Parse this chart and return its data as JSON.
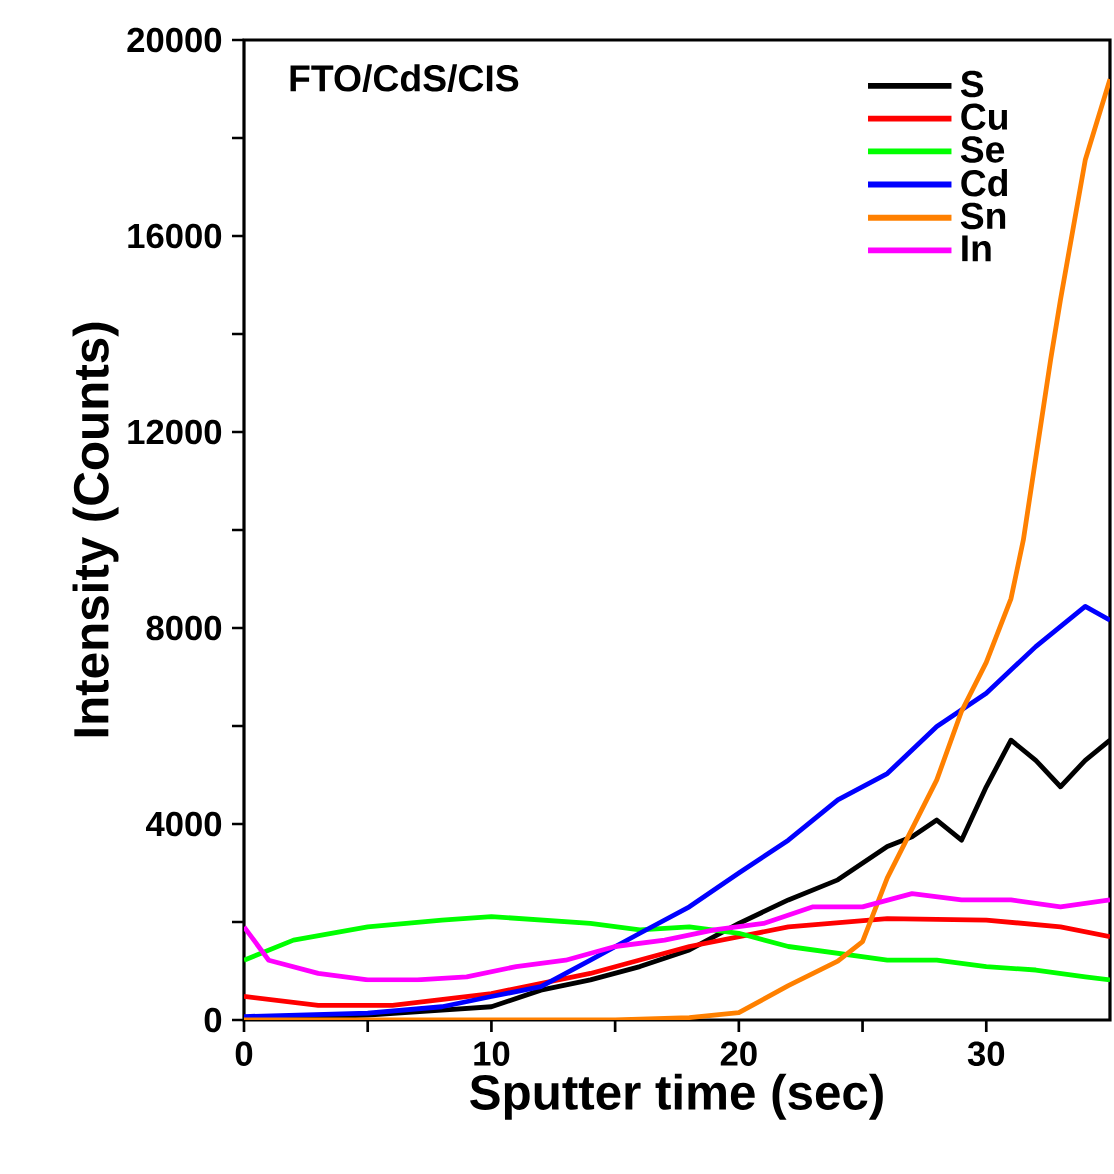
{
  "chart_data": {
    "type": "line",
    "xlabel": "Sputter time (sec)",
    "ylabel": "Intensity (Counts)",
    "annotations": [
      "FTO/CdS/CIS"
    ],
    "xlim": [
      0,
      35
    ],
    "ylim": [
      0,
      20000
    ],
    "xticks": [
      0,
      {
        "value": 5,
        "label": null
      },
      10,
      {
        "value": 15,
        "label": null
      },
      20,
      {
        "value": 25,
        "label": null
      },
      30
    ],
    "yticks": [
      0,
      {
        "value": 2000,
        "label": null
      },
      4000,
      {
        "value": 6000,
        "label": null
      },
      8000,
      {
        "value": 10000,
        "label": null
      },
      12000,
      {
        "value": 14000,
        "label": null
      },
      16000,
      {
        "value": 18000,
        "label": null
      },
      20000
    ],
    "grid": false,
    "legend": "top right",
    "marker": "none",
    "line_style": "solid",
    "series": [
      {
        "name": "S",
        "color": "#000000",
        "x": [
          0,
          5,
          8,
          10,
          12,
          14,
          16,
          18,
          20,
          22,
          24,
          26,
          27,
          28,
          29,
          30,
          31,
          32,
          33,
          34,
          35
        ],
        "values": [
          0,
          100,
          200,
          270,
          610,
          820,
          1090,
          1430,
          1970,
          2450,
          2860,
          3540,
          3740,
          4080,
          3670,
          4760,
          5710,
          5300,
          4760,
          5300,
          5710
        ]
      },
      {
        "name": "Cu",
        "color": "#ff0000",
        "x": [
          0,
          3,
          6,
          10,
          14,
          18,
          22,
          26,
          30,
          33,
          35
        ],
        "values": [
          480,
          300,
          300,
          540,
          950,
          1500,
          1900,
          2070,
          2040,
          1900,
          1700
        ]
      },
      {
        "name": "Se",
        "color": "#00ff00",
        "x": [
          0,
          2,
          5,
          8,
          10,
          12,
          14,
          16,
          18,
          20,
          22,
          24,
          26,
          28,
          30,
          32,
          34,
          35
        ],
        "values": [
          1220,
          1630,
          1900,
          2040,
          2110,
          2040,
          1970,
          1840,
          1900,
          1770,
          1500,
          1360,
          1220,
          1220,
          1090,
          1020,
          880,
          820
        ]
      },
      {
        "name": "Cd",
        "color": "#0000ff",
        "x": [
          0,
          5,
          8,
          10,
          12,
          14,
          16,
          18,
          20,
          22,
          24,
          26,
          28,
          30,
          32,
          34,
          35
        ],
        "values": [
          70,
          140,
          270,
          480,
          680,
          1220,
          1770,
          2310,
          3000,
          3670,
          4490,
          5030,
          5990,
          6670,
          7620,
          8440,
          8160
        ]
      },
      {
        "name": "Sn",
        "color": "#ff8000",
        "x": [
          0,
          5,
          10,
          15,
          18,
          20,
          22,
          23,
          24,
          25,
          26,
          27,
          28,
          29,
          30,
          31,
          31.5,
          32.6,
          33,
          34,
          35
        ],
        "values": [
          0,
          0,
          0,
          0,
          50,
          150,
          700,
          950,
          1200,
          1600,
          2900,
          3900,
          4900,
          6300,
          7300,
          8600,
          9800,
          13470,
          14700,
          17550,
          19200
        ]
      },
      {
        "name": "In",
        "color": "#ff00ff",
        "x": [
          0,
          1,
          3,
          5,
          7,
          9,
          11,
          13,
          15,
          17,
          19,
          21,
          23,
          25,
          27,
          29,
          31,
          33,
          35
        ],
        "values": [
          1900,
          1220,
          950,
          820,
          820,
          880,
          1090,
          1220,
          1500,
          1630,
          1840,
          1970,
          2310,
          2310,
          2580,
          2450,
          2450,
          2310,
          2450
        ]
      }
    ]
  }
}
